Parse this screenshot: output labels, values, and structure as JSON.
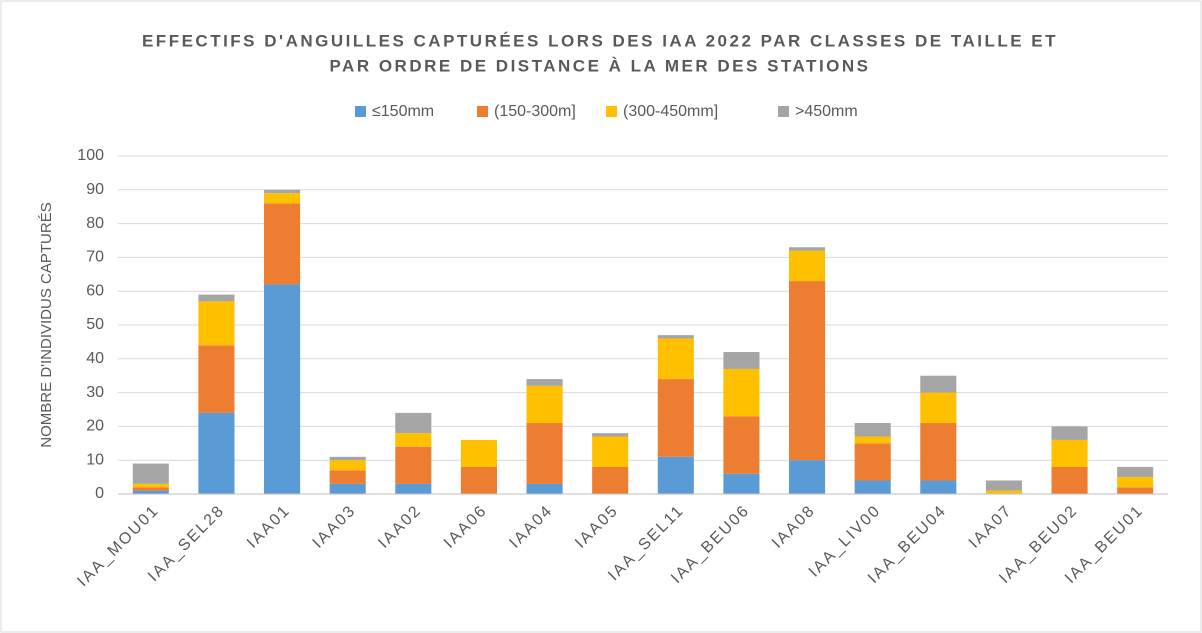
{
  "chart_data": {
    "type": "stacked_bar",
    "title": [
      "EFFECTIFS D'ANGUILLES CAPTURÉES LORS DES IAA 2022 PAR CLASSES DE TAILLE ET",
      "PAR ORDRE DE DISTANCE À LA MER DES STATIONS"
    ],
    "y_label": "NOMBRE D'INDIVIDUS CAPTURÉS",
    "categories": [
      "IAA_MOU01",
      "IAA_SEL28",
      "IAA01",
      "IAA03",
      "IAA02",
      "IAA06",
      "IAA04",
      "IAA05",
      "IAA_SEL11",
      "IAA_BEU06",
      "IAA08",
      "IAA_LIV00",
      "IAA_BEU04",
      "IAA07",
      "IAA_BEU02",
      "IAA_BEU01"
    ],
    "series": [
      {
        "name": "≤150mm",
        "color": "#5b9bd5",
        "values": [
          1,
          24,
          62,
          3,
          3,
          0,
          3,
          0,
          11,
          6,
          10,
          4,
          4,
          0,
          0,
          0
        ]
      },
      {
        "name": "(150-300m]",
        "color": "#ed7d31",
        "values": [
          1,
          20,
          24,
          4,
          11,
          8,
          18,
          8,
          23,
          17,
          53,
          11,
          17,
          0,
          8,
          2
        ]
      },
      {
        "name": "(300-450mm]",
        "color": "#ffc000",
        "values": [
          1,
          13,
          3,
          3,
          4,
          8,
          11,
          9,
          12,
          14,
          9,
          2,
          9,
          1,
          8,
          3
        ]
      },
      {
        "name": ">450mm",
        "color": "#a5a5a5",
        "values": [
          6,
          2,
          1,
          1,
          6,
          0,
          2,
          1,
          1,
          5,
          1,
          4,
          5,
          3,
          4,
          3
        ]
      }
    ],
    "ylim": [
      0,
      100
    ],
    "yticks": [
      0,
      10,
      20,
      30,
      40,
      50,
      60,
      70,
      80,
      90,
      100
    ],
    "grid": true,
    "legend": "top"
  }
}
